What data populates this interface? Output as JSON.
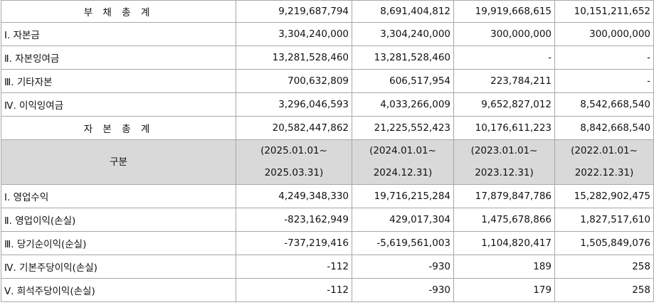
{
  "balance_rows": [
    {
      "label": "부 채 총 계",
      "values": [
        "9,219,687,794",
        "8,691,404,812",
        "19,919,668,615",
        "10,151,211,652"
      ]
    },
    {
      "label": "Ⅰ. 자본금",
      "values": [
        "3,304,240,000",
        "3,304,240,000",
        "300,000,000",
        "300,000,000"
      ]
    },
    {
      "label": "Ⅱ. 자본잉여금",
      "values": [
        "13,281,528,460",
        "13,281,528,460",
        "-",
        "-"
      ]
    },
    {
      "label": "Ⅲ. 기타자본",
      "values": [
        "700,632,809",
        "606,517,954",
        "223,784,211",
        "-"
      ]
    },
    {
      "label": "Ⅳ. 이익잉여금",
      "values": [
        "3,296,046,593",
        "4,033,266,009",
        "9,652,827,012",
        "8,542,668,540"
      ]
    },
    {
      "label": "자 본 총 계",
      "values": [
        "20,582,447,862",
        "21,225,552,423",
        "10,176,611,223",
        "8,842,668,540"
      ]
    }
  ],
  "header": {
    "label": "구분",
    "periods": [
      {
        "start": "(2025.01.01~",
        "end": "2025.03.31)"
      },
      {
        "start": "(2024.01.01~",
        "end": "2024.12.31)"
      },
      {
        "start": "(2023.01.01~",
        "end": "2023.12.31)"
      },
      {
        "start": "(2022.01.01~",
        "end": "2022.12.31)"
      }
    ]
  },
  "income_rows": [
    {
      "label": "Ⅰ. 영업수익",
      "values": [
        "4,249,348,330",
        "19,716,215,284",
        "17,879,847,786",
        "15,282,902,475"
      ]
    },
    {
      "label": "Ⅱ. 영업이익(손실)",
      "values": [
        "-823,162,949",
        "429,017,304",
        "1,475,678,866",
        "1,827,517,610"
      ]
    },
    {
      "label": "Ⅲ. 당기순이익(순실)",
      "values": [
        "-737,219,416",
        "-5,619,561,003",
        "1,104,820,417",
        "1,505,849,076"
      ]
    },
    {
      "label": "Ⅳ. 기본주당이익(손실)",
      "values": [
        "-112",
        "-930",
        "189",
        "258"
      ]
    },
    {
      "label": "Ⅴ. 희석주당이익(손실)",
      "values": [
        "-112",
        "-930",
        "179",
        "258"
      ]
    }
  ]
}
